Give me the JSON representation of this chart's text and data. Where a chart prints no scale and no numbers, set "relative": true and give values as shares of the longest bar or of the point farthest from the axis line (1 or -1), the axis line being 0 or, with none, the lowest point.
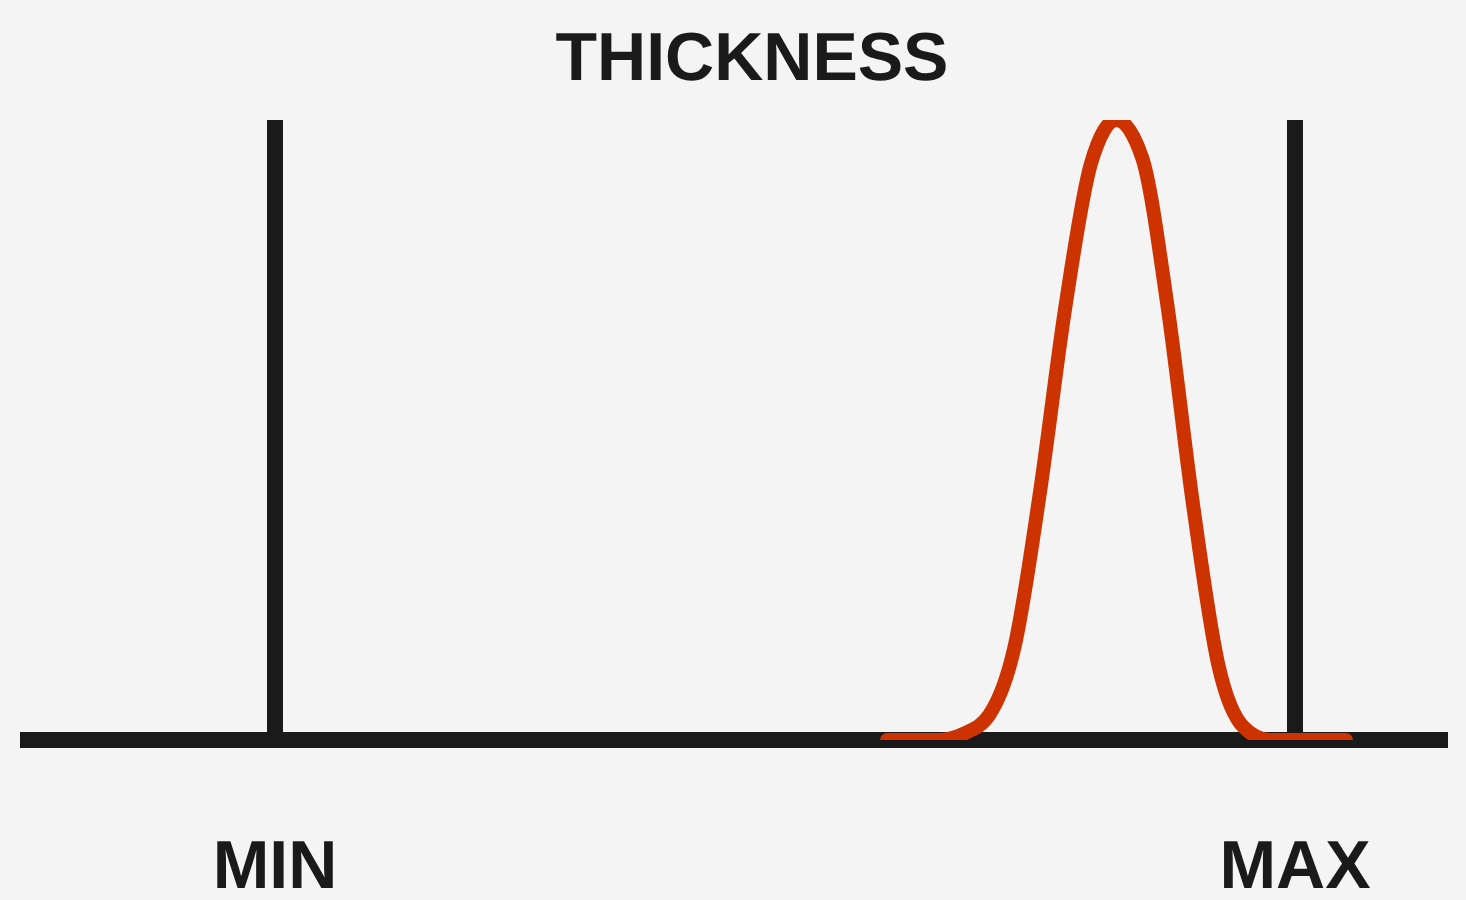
{
  "chart_data": {
    "type": "line",
    "title": "THICKNESS",
    "relative": true,
    "categories": [
      null,
      null,
      null,
      null,
      null,
      null,
      null,
      null,
      null,
      null,
      "MIN",
      null,
      null,
      null,
      null,
      null,
      null,
      null,
      null,
      null,
      null,
      null,
      null,
      null,
      null,
      null,
      null,
      null,
      null,
      null,
      null,
      null,
      null,
      null,
      null,
      null,
      null,
      null,
      null,
      null,
      null,
      null,
      null,
      null,
      null,
      null,
      null,
      null,
      null,
      null,
      "MAX",
      null,
      null,
      null,
      null,
      null,
      null
    ],
    "series": [
      {
        "color": "#cc3300",
        "values": [
          null,
          null,
          null,
          null,
          null,
          null,
          null,
          null,
          null,
          null,
          null,
          null,
          null,
          null,
          null,
          null,
          null,
          null,
          null,
          null,
          null,
          null,
          null,
          null,
          null,
          null,
          null,
          null,
          null,
          null,
          null,
          null,
          null,
          null,
          0,
          0,
          0,
          0.01,
          0.04,
          0.15,
          0.4,
          0.7,
          0.93,
          1,
          0.94,
          0.7,
          0.38,
          0.12,
          0.02,
          0,
          0,
          0,
          0,
          null,
          null,
          null,
          null
        ]
      }
    ],
    "ref_lines": [
      {
        "axis": "x",
        "value": "MIN",
        "color": "#1a1a1a"
      },
      {
        "axis": "x",
        "value": "MAX",
        "color": "#1a1a1a"
      }
    ]
  }
}
